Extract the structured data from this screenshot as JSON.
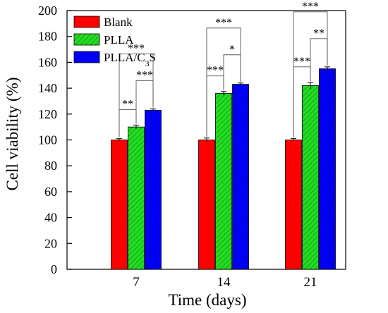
{
  "chart_data": {
    "type": "bar",
    "xlabel": "Time (days)",
    "ylabel": "Cell viability (%)",
    "categories": [
      "7",
      "14",
      "21"
    ],
    "ylim": [
      0,
      200
    ],
    "yticks": [
      0,
      20,
      40,
      60,
      80,
      100,
      120,
      140,
      160,
      180,
      200
    ],
    "grid": false,
    "legend_position": "top-left",
    "series": [
      {
        "name": "Blank",
        "values": [
          100,
          100,
          100
        ],
        "errors": [
          1,
          1.5,
          1
        ],
        "color": "#ff0000",
        "pattern": "solid"
      },
      {
        "name": "PLLA",
        "values": [
          110,
          136,
          142
        ],
        "errors": [
          1.5,
          1.5,
          2.5
        ],
        "color": "#22dd22",
        "pattern": "hatched"
      },
      {
        "name": "PLLA/C3S",
        "values": [
          123,
          143,
          155
        ],
        "errors": [
          1,
          1,
          1.5
        ],
        "color": "#0000ff",
        "pattern": "hatched"
      }
    ],
    "significance": [
      {
        "category": "7",
        "pairs": [
          {
            "from": "Blank",
            "to": "PLLA",
            "label": "**"
          },
          {
            "from": "PLLA",
            "to": "PLLA/C3S",
            "label": "***"
          },
          {
            "from": "Blank",
            "to": "PLLA/C3S",
            "label": "***"
          }
        ]
      },
      {
        "category": "14",
        "pairs": [
          {
            "from": "Blank",
            "to": "PLLA",
            "label": "***"
          },
          {
            "from": "PLLA",
            "to": "PLLA/C3S",
            "label": "*"
          },
          {
            "from": "Blank",
            "to": "PLLA/C3S",
            "label": "***"
          }
        ]
      },
      {
        "category": "21",
        "pairs": [
          {
            "from": "Blank",
            "to": "PLLA",
            "label": "***"
          },
          {
            "from": "PLLA",
            "to": "PLLA/C3S",
            "label": "**"
          },
          {
            "from": "Blank",
            "to": "PLLA/C3S",
            "label": "***"
          }
        ]
      }
    ]
  }
}
